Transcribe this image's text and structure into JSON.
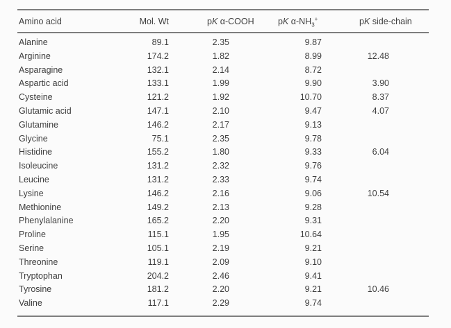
{
  "page": {
    "background": "#fbfbfb",
    "text_color": "#3e3e3e",
    "rule_color": "#7e7e7e"
  },
  "table": {
    "columns": [
      {
        "label": "Amino acid"
      },
      {
        "label": "Mol. Wt"
      },
      {
        "p": "p",
        "k": "K",
        "rest": " α-COOH"
      },
      {
        "p": "p",
        "k": "K",
        "rest": " α-NH",
        "sub": "3",
        "sup": "+"
      },
      {
        "p": "p",
        "k": "K",
        "rest": " side-chain"
      }
    ],
    "rows": [
      {
        "name": "Alanine",
        "mol_wt": "89.1",
        "pk_cooh": "2.35",
        "pk_nh3": "9.87",
        "pk_side": ""
      },
      {
        "name": "Arginine",
        "mol_wt": "174.2",
        "pk_cooh": "1.82",
        "pk_nh3": "8.99",
        "pk_side": "12.48"
      },
      {
        "name": "Asparagine",
        "mol_wt": "132.1",
        "pk_cooh": "2.14",
        "pk_nh3": "8.72",
        "pk_side": ""
      },
      {
        "name": "Aspartic acid",
        "mol_wt": "133.1",
        "pk_cooh": "1.99",
        "pk_nh3": "9.90",
        "pk_side": "3.90"
      },
      {
        "name": "Cysteine",
        "mol_wt": "121.2",
        "pk_cooh": "1.92",
        "pk_nh3": "10.70",
        "pk_side": "8.37"
      },
      {
        "name": "Glutamic acid",
        "mol_wt": "147.1",
        "pk_cooh": "2.10",
        "pk_nh3": "9.47",
        "pk_side": "4.07"
      },
      {
        "name": "Glutamine",
        "mol_wt": "146.2",
        "pk_cooh": "2.17",
        "pk_nh3": "9.13",
        "pk_side": ""
      },
      {
        "name": "Glycine",
        "mol_wt": "75.1",
        "pk_cooh": "2.35",
        "pk_nh3": "9.78",
        "pk_side": ""
      },
      {
        "name": "Histidine",
        "mol_wt": "155.2",
        "pk_cooh": "1.80",
        "pk_nh3": "9.33",
        "pk_side": "6.04"
      },
      {
        "name": "Isoleucine",
        "mol_wt": "131.2",
        "pk_cooh": "2.32",
        "pk_nh3": "9.76",
        "pk_side": ""
      },
      {
        "name": "Leucine",
        "mol_wt": "131.2",
        "pk_cooh": "2.33",
        "pk_nh3": "9.74",
        "pk_side": ""
      },
      {
        "name": "Lysine",
        "mol_wt": "146.2",
        "pk_cooh": "2.16",
        "pk_nh3": "9.06",
        "pk_side": "10.54"
      },
      {
        "name": "Methionine",
        "mol_wt": "149.2",
        "pk_cooh": "2.13",
        "pk_nh3": "9.28",
        "pk_side": ""
      },
      {
        "name": "Phenylalanine",
        "mol_wt": "165.2",
        "pk_cooh": "2.20",
        "pk_nh3": "9.31",
        "pk_side": ""
      },
      {
        "name": "Proline",
        "mol_wt": "115.1",
        "pk_cooh": "1.95",
        "pk_nh3": "10.64",
        "pk_side": ""
      },
      {
        "name": "Serine",
        "mol_wt": "105.1",
        "pk_cooh": "2.19",
        "pk_nh3": "9.21",
        "pk_side": ""
      },
      {
        "name": "Threonine",
        "mol_wt": "119.1",
        "pk_cooh": "2.09",
        "pk_nh3": "9.10",
        "pk_side": ""
      },
      {
        "name": "Tryptophan",
        "mol_wt": "204.2",
        "pk_cooh": "2.46",
        "pk_nh3": "9.41",
        "pk_side": ""
      },
      {
        "name": "Tyrosine",
        "mol_wt": "181.2",
        "pk_cooh": "2.20",
        "pk_nh3": "9.21",
        "pk_side": "10.46"
      },
      {
        "name": "Valine",
        "mol_wt": "117.1",
        "pk_cooh": "2.29",
        "pk_nh3": "9.74",
        "pk_side": ""
      }
    ]
  }
}
